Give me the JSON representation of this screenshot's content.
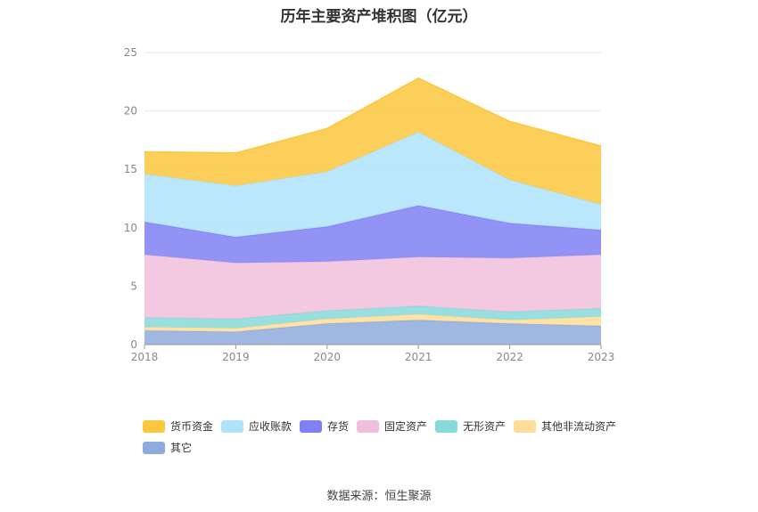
{
  "title": "历年主要资产堆积图（亿元）",
  "source": "数据来源：恒生聚源",
  "chart_data": {
    "type": "area",
    "stacked": true,
    "categories": [
      "2018",
      "2019",
      "2020",
      "2021",
      "2022",
      "2023"
    ],
    "ylim": [
      0,
      25
    ],
    "yticks": [
      0,
      5,
      10,
      15,
      20,
      25
    ],
    "grid": true,
    "legend_position": "bottom-left",
    "series": [
      {
        "name": "其它",
        "color": "#8faadc",
        "values": [
          1.2,
          1.1,
          1.8,
          2.1,
          1.8,
          1.6
        ]
      },
      {
        "name": "其他非流动资产",
        "color": "#ffdd99",
        "values": [
          0.3,
          0.3,
          0.4,
          0.5,
          0.3,
          0.8
        ]
      },
      {
        "name": "无形资产",
        "color": "#88d9d9",
        "values": [
          0.8,
          0.8,
          0.7,
          0.7,
          0.7,
          0.7
        ]
      },
      {
        "name": "固定资产",
        "color": "#f0bfdc",
        "values": [
          5.4,
          4.8,
          4.2,
          4.2,
          4.6,
          4.6
        ]
      },
      {
        "name": "存货",
        "color": "#8080f5",
        "values": [
          2.8,
          2.2,
          3.0,
          4.4,
          3.0,
          2.1
        ]
      },
      {
        "name": "应收账款",
        "color": "#aee3fa",
        "values": [
          4.1,
          4.4,
          4.7,
          6.3,
          3.7,
          2.2
        ]
      },
      {
        "name": "货币资金",
        "color": "#fbc73e",
        "values": [
          1.9,
          2.8,
          3.7,
          4.6,
          5.0,
          5.0
        ]
      }
    ],
    "legend_order": [
      "货币资金",
      "应收账款",
      "存货",
      "固定资产",
      "无形资产",
      "其他非流动资产",
      "其它"
    ]
  }
}
